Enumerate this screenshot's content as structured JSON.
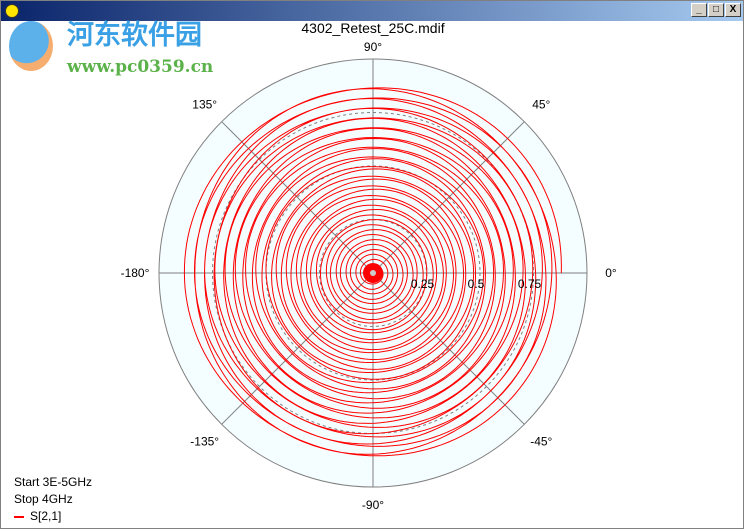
{
  "window": {
    "title_icon": "app-icon",
    "minimize": "_",
    "maximize": "□",
    "close": "X"
  },
  "watermark": {
    "line1": "河东软件园",
    "line2": "www.pc0359.cn"
  },
  "chart_data": {
    "type": "line",
    "projection": "polar",
    "title": "4302_Retest_25C.mdif",
    "angle_labels": [
      {
        "deg": 90,
        "text": "90°"
      },
      {
        "deg": 45,
        "text": "45°"
      },
      {
        "deg": 0,
        "text": "0°"
      },
      {
        "deg": -45,
        "text": "-45°"
      },
      {
        "deg": -90,
        "text": "-90°"
      },
      {
        "deg": -135,
        "text": "-135°"
      },
      {
        "deg": -180,
        "text": "-180°"
      },
      {
        "deg": 135,
        "text": "135°"
      }
    ],
    "radial_ticks": [
      "0.25",
      "0.5",
      "0.75"
    ],
    "radial_range": [
      0,
      1
    ],
    "series": [
      {
        "name": "S[2,1]",
        "color": "#ff0000",
        "shape": "spiral",
        "magnitude_start": 0.88,
        "magnitude_end": 0.0
      }
    ],
    "start": "Start 3E-5GHz",
    "stop": "Stop  4GHz",
    "plot_background": "#f4fdff"
  }
}
